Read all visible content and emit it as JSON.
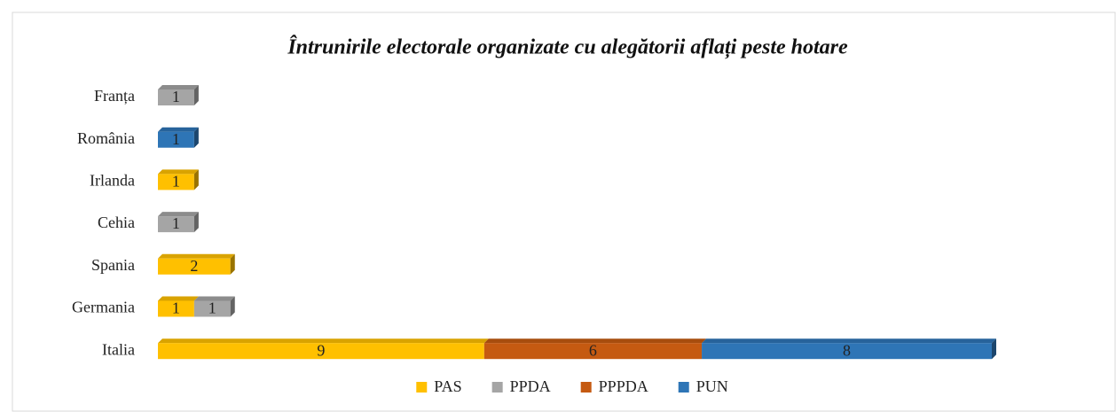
{
  "chart_data": {
    "type": "bar",
    "orientation": "horizontal",
    "stacked": true,
    "title": "Întrunirile electorale organizate cu alegătorii aflați peste hotare",
    "categories": [
      "Franța",
      "România",
      "Irlanda",
      "Cehia",
      "Spania",
      "Germania",
      "Italia"
    ],
    "series": [
      {
        "name": "PAS",
        "color": "#FFC000",
        "values": [
          null,
          null,
          1,
          null,
          2,
          1,
          9
        ]
      },
      {
        "name": "PPDA",
        "color": "#A5A5A5",
        "values": [
          1,
          null,
          null,
          1,
          null,
          1,
          null
        ]
      },
      {
        "name": "PPPDA",
        "color": "#C55A11",
        "values": [
          null,
          null,
          null,
          null,
          null,
          null,
          6
        ]
      },
      {
        "name": "PUN",
        "color": "#2E75B6",
        "values": [
          null,
          1,
          null,
          null,
          null,
          null,
          8
        ]
      }
    ],
    "legend": "bottom"
  }
}
